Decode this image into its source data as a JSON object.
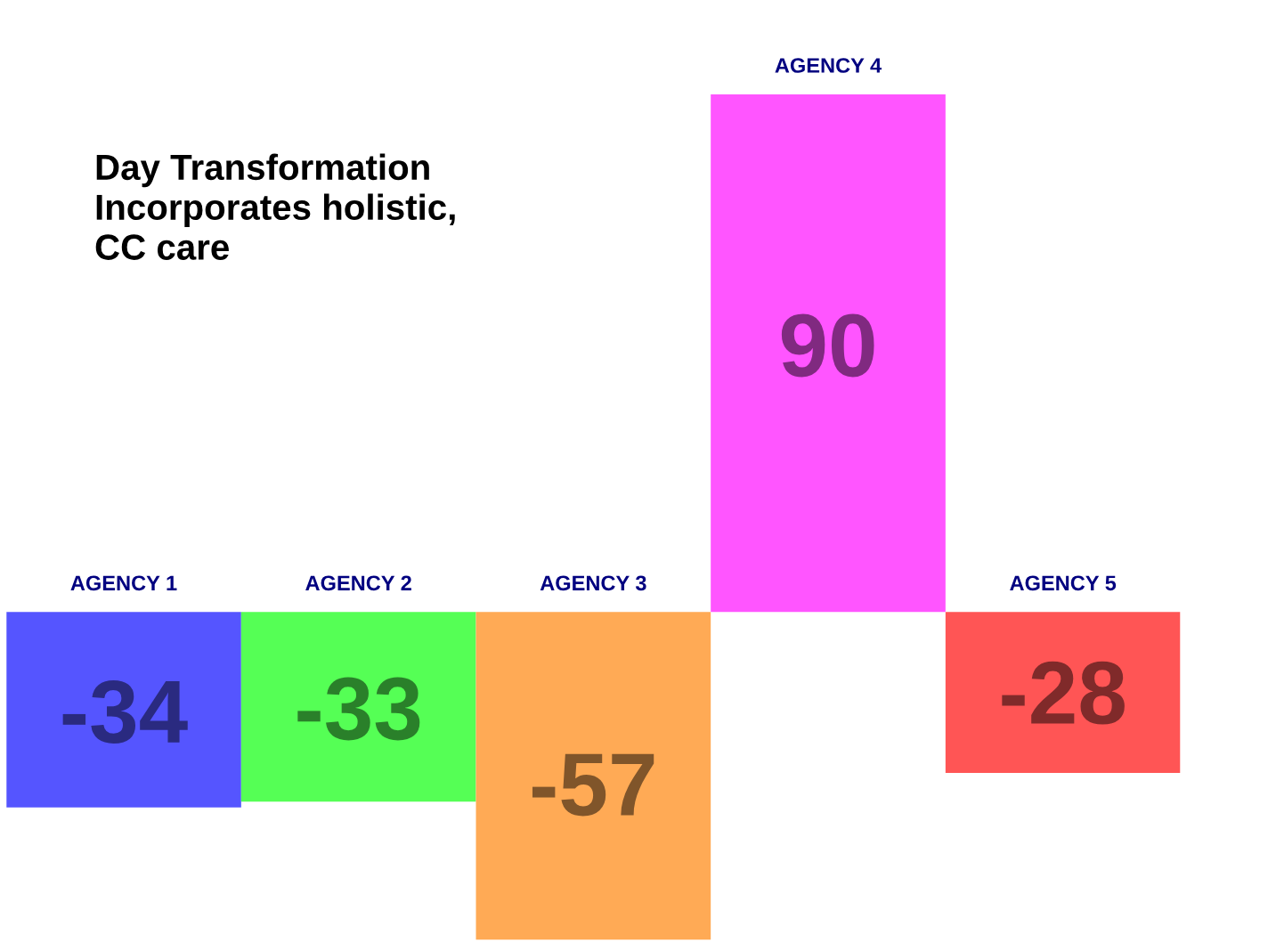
{
  "chart_data": {
    "type": "bar",
    "title": "Day Transformation\nIncorporates holistic,\nCC care",
    "categories": [
      "AGENCY 1",
      "AGENCY 2",
      "AGENCY 3",
      "AGENCY 4",
      "AGENCY 5"
    ],
    "values": [
      -34,
      -33,
      -57,
      90,
      -28
    ],
    "colors": [
      "#5555ff",
      "#55ff55",
      "#ffaa55",
      "#ff55ff",
      "#ff5555"
    ],
    "data_labels": true
  }
}
